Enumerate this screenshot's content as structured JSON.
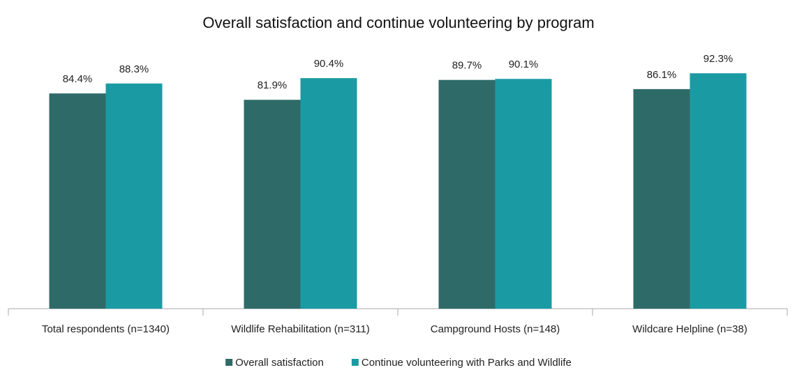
{
  "chart_data": {
    "type": "bar",
    "title": "Overall satisfaction and continue volunteering by program",
    "categories": [
      "Total respondents (n=1340)",
      "Wildlife Rehabilitation (n=311)",
      "Campground Hosts (n=148)",
      "Wildcare Helpline (n=38)"
    ],
    "series": [
      {
        "name": "Overall satisfaction",
        "color": "#2e6b68",
        "values": [
          84.4,
          81.9,
          89.7,
          86.1
        ],
        "value_labels": [
          "84.4%",
          "81.9%",
          "89.7%",
          "86.1%"
        ]
      },
      {
        "name": "Continue volunteering with Parks and Wildlife",
        "color": "#1a9ba3",
        "values": [
          88.3,
          90.4,
          90.1,
          92.3
        ],
        "value_labels": [
          "88.3%",
          "90.4%",
          "90.1%",
          "92.3%"
        ]
      }
    ],
    "ylim": [
      0,
      100
    ],
    "legend": "bottom"
  }
}
